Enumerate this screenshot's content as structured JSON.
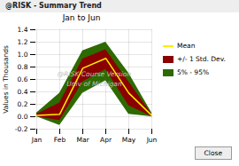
{
  "chart_data": {
    "type": "area",
    "title": "Jan to Jun",
    "ylabel": "Values in Thousands",
    "annotations": [
      "@RISK - Summary Trend",
      "@RISK Course Version",
      "Univ of Michigan",
      "Close"
    ],
    "categories": [
      "Jan",
      "Feb",
      "Mar",
      "Apr",
      "May",
      "Jun"
    ],
    "series": [
      {
        "name": "Mean",
        "type": "line",
        "color": "#ffee00",
        "values": [
          0.02,
          0.04,
          0.78,
          0.94,
          0.38,
          0.02
        ]
      },
      {
        "name": "+/- 1 Std. Dev.",
        "type": "area",
        "color": "#8b0000",
        "upper": [
          0.04,
          0.22,
          0.93,
          1.08,
          0.56,
          0.04
        ],
        "lower": [
          0.0,
          -0.06,
          0.56,
          0.76,
          0.18,
          0.0
        ]
      },
      {
        "name": "5% - 95%",
        "type": "area",
        "color": "#2d6a00",
        "upper": [
          0.06,
          0.38,
          1.06,
          1.2,
          0.7,
          0.06
        ],
        "lower": [
          0.0,
          -0.14,
          0.38,
          0.58,
          0.04,
          0.0
        ]
      }
    ],
    "ylim": [
      -0.2,
      1.4
    ],
    "yticks": [
      -0.2,
      {
        "value": 0.0,
        "label": "0.0"
      },
      0.2,
      0.4,
      0.6,
      0.8,
      {
        "value": 1.0,
        "label": "1.0"
      },
      1.2,
      1.4
    ],
    "grid": true,
    "legend": "right"
  }
}
